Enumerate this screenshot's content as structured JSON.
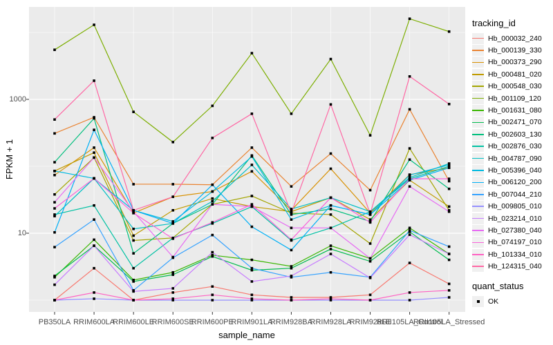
{
  "figure": {
    "y_axis": {
      "title": "FPKM + 1",
      "tick_labels": [
        "1000",
        "10"
      ],
      "tick_values": [
        1000,
        10
      ]
    },
    "x_axis": {
      "title": "sample_name"
    },
    "legend": {
      "title": "tracking_id"
    },
    "quant_legend": {
      "title": "quant_status",
      "item": "OK"
    },
    "colors": {
      "panel_bg": "#EBEBEB",
      "grid": "#FFFFFF",
      "axis_text": "#4D4D4D",
      "point": "#000000",
      "legend_key_bg": "#F0F0F0"
    }
  },
  "chart_data": {
    "type": "line",
    "title": "",
    "xlabel": "sample_name",
    "ylabel": "FPKM + 1",
    "y_scale": "log10",
    "y_breaks": [
      10,
      1000
    ],
    "y_minor_breaks": [
      1,
      100,
      10000
    ],
    "ylim": [
      0.7,
      24000
    ],
    "grid": true,
    "legend_position": "right",
    "marker": "black-square",
    "categories": [
      "PB350LA",
      "RRIM600LA",
      "RRIM600LE",
      "RRIM600SE",
      "RRIM600PE",
      "RRIM901LA",
      "RRIM928BA",
      "RRIM928LA",
      "RRIM928LE",
      "RRII105LA_Control",
      "RRII105LA_Stressed"
    ],
    "series": [
      {
        "name": "Hb_000032_240",
        "color": "#F8766D",
        "values": [
          1.0,
          3.0,
          1.0,
          1.3,
          1.6,
          1.2,
          1.1,
          1.1,
          1.2,
          3.6,
          1.75
        ]
      },
      {
        "name": "Hb_000139_330",
        "color": "#EA8331",
        "values": [
          310,
          540,
          54,
          54,
          53,
          190,
          50,
          155,
          44,
          710,
          60
        ]
      },
      {
        "name": "Hb_000373_290",
        "color": "#D89000",
        "values": [
          74,
          190,
          20,
          35,
          42,
          84,
          22,
          92,
          20,
          75,
          95
        ]
      },
      {
        "name": "Hb_000481_020",
        "color": "#C09B00",
        "values": [
          85,
          160,
          9.2,
          22,
          33,
          25,
          21,
          34,
          16,
          62,
          25
        ]
      },
      {
        "name": "Hb_000548_030",
        "color": "#A3A500",
        "values": [
          38,
          135,
          7.8,
          8.5,
          27,
          36,
          20,
          19,
          7,
          185,
          22
        ]
      },
      {
        "name": "Hb_001109_120",
        "color": "#7CAE00",
        "values": [
          5500,
          13000,
          650,
          230,
          800,
          4900,
          610,
          4000,
          290,
          16000,
          10300
        ]
      },
      {
        "name": "Hb_001631_080",
        "color": "#39B600",
        "values": [
          2.2,
          8,
          2.0,
          2.6,
          4.7,
          4.0,
          3.2,
          6.5,
          4.2,
          12,
          4.9
        ]
      },
      {
        "name": "Hb_002471_070",
        "color": "#00BB4E",
        "values": [
          2.3,
          6.5,
          1.9,
          2.4,
          4.5,
          2.8,
          3.0,
          5.8,
          3.8,
          10.5,
          4.0
        ]
      },
      {
        "name": "Hb_002603_130",
        "color": "#00BF7D",
        "values": [
          115,
          520,
          5.0,
          14,
          27,
          145,
          19,
          23,
          15,
          126,
          46
        ]
      },
      {
        "name": "Hb_002876_030",
        "color": "#00C1A3",
        "values": [
          19,
          26,
          3.0,
          8.5,
          14,
          25,
          7.8,
          12,
          21,
          65,
          100
        ]
      },
      {
        "name": "Hb_004787_090",
        "color": "#00BFC4",
        "values": [
          18,
          66,
          11.6,
          14,
          30,
          105,
          23,
          34,
          21,
          68,
          110
        ]
      },
      {
        "name": "Hb_005396_040",
        "color": "#00BAE0",
        "values": [
          85,
          66,
          22,
          15,
          42,
          140,
          16,
          26,
          19,
          74,
          105
        ]
      },
      {
        "name": "Hb_006120_200",
        "color": "#00B0F6",
        "values": [
          10.3,
          350,
          22,
          14,
          53,
          12.5,
          5.6,
          26,
          19,
          62,
          95
        ]
      },
      {
        "name": "Hb_007044_210",
        "color": "#35A2FF",
        "values": [
          6.2,
          16,
          1.4,
          4.3,
          9.4,
          3.0,
          2.2,
          2.6,
          2.2,
          11,
          6.3
        ]
      },
      {
        "name": "Hb_009805_010",
        "color": "#9590FF",
        "values": [
          1.0,
          1.05,
          1.0,
          1.0,
          1.0,
          1.0,
          1.0,
          1.0,
          1.0,
          1.0,
          1.1
        ]
      },
      {
        "name": "Hb_023214_010",
        "color": "#C77CFF",
        "values": [
          1.7,
          6.5,
          1.35,
          1.5,
          5.2,
          1.9,
          2.3,
          4.9,
          2.15,
          9.5,
          4.9
        ]
      },
      {
        "name": "Hb_027380_040",
        "color": "#E76BF3",
        "values": [
          29,
          135,
          21,
          4.4,
          27,
          25,
          12,
          12,
          4.2,
          50,
          21
        ]
      },
      {
        "name": "Hb_074197_010",
        "color": "#FA62DB",
        "values": [
          23.5,
          66,
          20,
          8.3,
          14.5,
          27,
          8,
          34,
          14.5,
          65,
          65
        ]
      },
      {
        "name": "Hb_101334_010",
        "color": "#FF61C3",
        "values": [
          1.0,
          1.3,
          1.0,
          1.05,
          1.2,
          1.05,
          1.0,
          1.05,
          1.0,
          1.3,
          1.4
        ]
      },
      {
        "name": "Hb_124315_040",
        "color": "#FF67A4",
        "values": [
          500,
          1900,
          22,
          35,
          265,
          610,
          20,
          840,
          19.5,
          2200,
          850
        ]
      }
    ],
    "quant_status": {
      "title": "quant_status",
      "items": [
        {
          "label": "OK",
          "marker": "black-square"
        }
      ]
    }
  }
}
